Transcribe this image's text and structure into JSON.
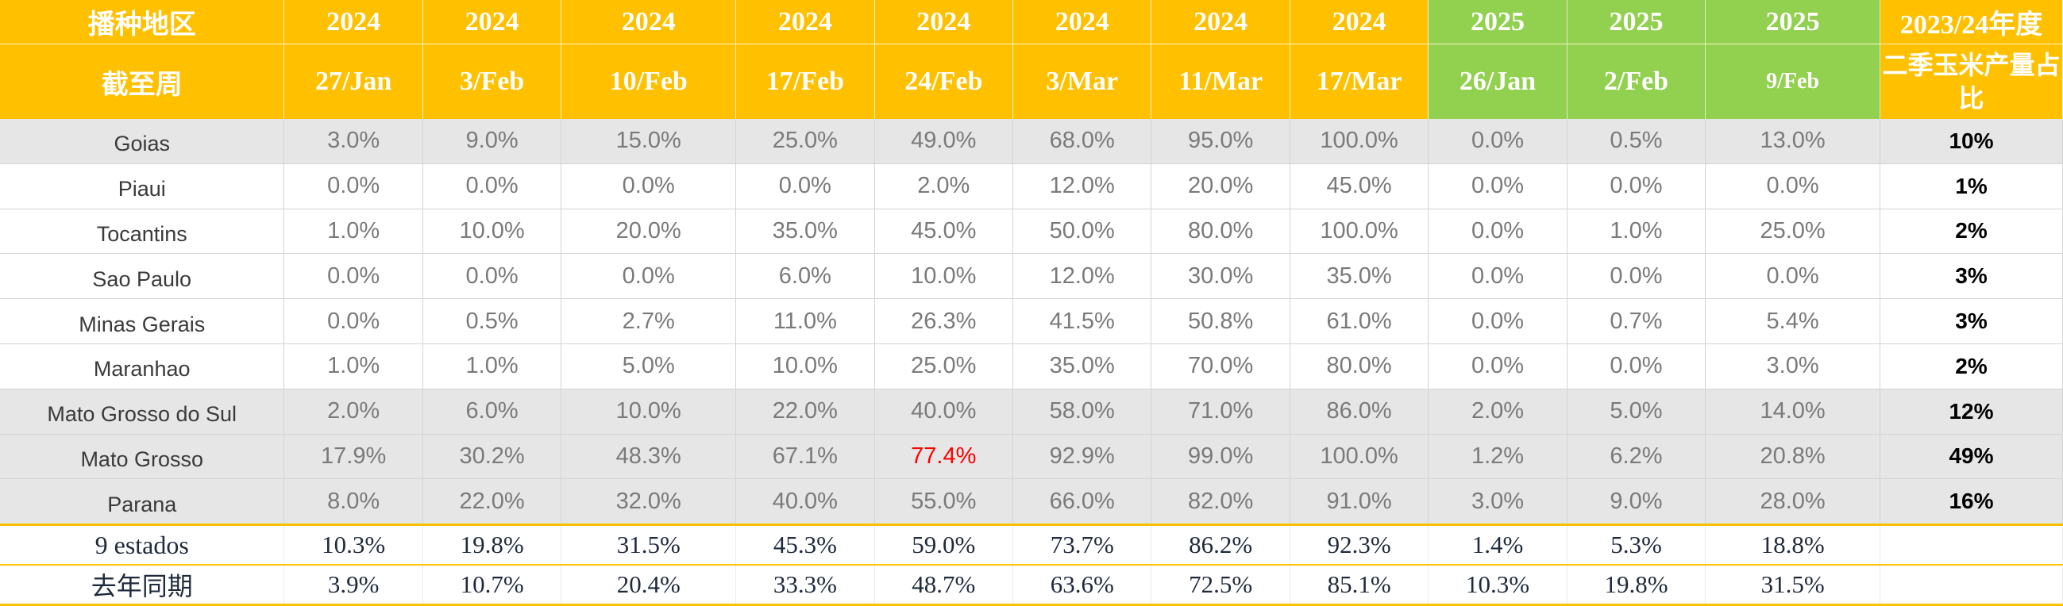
{
  "header": {
    "row1_label": "播种地区",
    "row2_label": "截至周",
    "years": [
      "2024",
      "2024",
      "2024",
      "2024",
      "2024",
      "2024",
      "2024",
      "2024",
      "2025",
      "2025",
      "2025"
    ],
    "dates": [
      "27/Jan",
      "3/Feb",
      "10/Feb",
      "17/Feb",
      "24/Feb",
      "3/Mar",
      "11/Mar",
      "17/Mar",
      "26/Jan",
      "2/Feb",
      "9/Feb"
    ],
    "share_title": "2023/24年度",
    "share_subtitle": "二季玉米产量占比"
  },
  "colors": {
    "header_2024": "#ffc000",
    "header_2025": "#92d050",
    "highlight": "#ff0000",
    "row_shade": "#e6e6e6"
  },
  "rows": [
    {
      "name": "Goias",
      "values": [
        "3.0%",
        "9.0%",
        "15.0%",
        "25.0%",
        "49.0%",
        "68.0%",
        "95.0%",
        "100.0%",
        "0.0%",
        "0.5%",
        "13.0%"
      ],
      "share": "10%"
    },
    {
      "name": "Piaui",
      "values": [
        "0.0%",
        "0.0%",
        "0.0%",
        "0.0%",
        "2.0%",
        "12.0%",
        "20.0%",
        "45.0%",
        "0.0%",
        "0.0%",
        "0.0%"
      ],
      "share": "1%"
    },
    {
      "name": "Tocantins",
      "values": [
        "1.0%",
        "10.0%",
        "20.0%",
        "35.0%",
        "45.0%",
        "50.0%",
        "80.0%",
        "100.0%",
        "0.0%",
        "1.0%",
        "25.0%"
      ],
      "share": "2%"
    },
    {
      "name": "Sao Paulo",
      "values": [
        "0.0%",
        "0.0%",
        "0.0%",
        "6.0%",
        "10.0%",
        "12.0%",
        "30.0%",
        "35.0%",
        "0.0%",
        "0.0%",
        "0.0%"
      ],
      "share": "3%"
    },
    {
      "name": "Minas Gerais",
      "values": [
        "0.0%",
        "0.5%",
        "2.7%",
        "11.0%",
        "26.3%",
        "41.5%",
        "50.8%",
        "61.0%",
        "0.0%",
        "0.7%",
        "5.4%"
      ],
      "share": "3%"
    },
    {
      "name": "Maranhao",
      "values": [
        "1.0%",
        "1.0%",
        "5.0%",
        "10.0%",
        "25.0%",
        "35.0%",
        "70.0%",
        "80.0%",
        "0.0%",
        "0.0%",
        "3.0%"
      ],
      "share": "2%"
    },
    {
      "name": "Mato Grosso do Sul",
      "values": [
        "2.0%",
        "6.0%",
        "10.0%",
        "22.0%",
        "40.0%",
        "58.0%",
        "71.0%",
        "86.0%",
        "2.0%",
        "5.0%",
        "14.0%"
      ],
      "share": "12%"
    },
    {
      "name": "Mato Grosso",
      "values": [
        "17.9%",
        "30.2%",
        "48.3%",
        "67.1%",
        "77.4%",
        "92.9%",
        "99.0%",
        "100.0%",
        "1.2%",
        "6.2%",
        "20.8%"
      ],
      "share": "49%"
    },
    {
      "name": "Parana",
      "values": [
        "8.0%",
        "22.0%",
        "32.0%",
        "40.0%",
        "55.0%",
        "66.0%",
        "82.0%",
        "91.0%",
        "3.0%",
        "9.0%",
        "28.0%"
      ],
      "share": "16%"
    }
  ],
  "summary": [
    {
      "name": "9 estados",
      "values": [
        "10.3%",
        "19.8%",
        "31.5%",
        "45.3%",
        "59.0%",
        "73.7%",
        "86.2%",
        "92.3%",
        "1.4%",
        "5.3%",
        "18.8%"
      ],
      "share": ""
    },
    {
      "name": "去年同期",
      "values": [
        "3.9%",
        "10.7%",
        "20.4%",
        "33.3%",
        "48.7%",
        "63.6%",
        "72.5%",
        "85.1%",
        "10.3%",
        "19.8%",
        "31.5%"
      ],
      "share": ""
    }
  ]
}
